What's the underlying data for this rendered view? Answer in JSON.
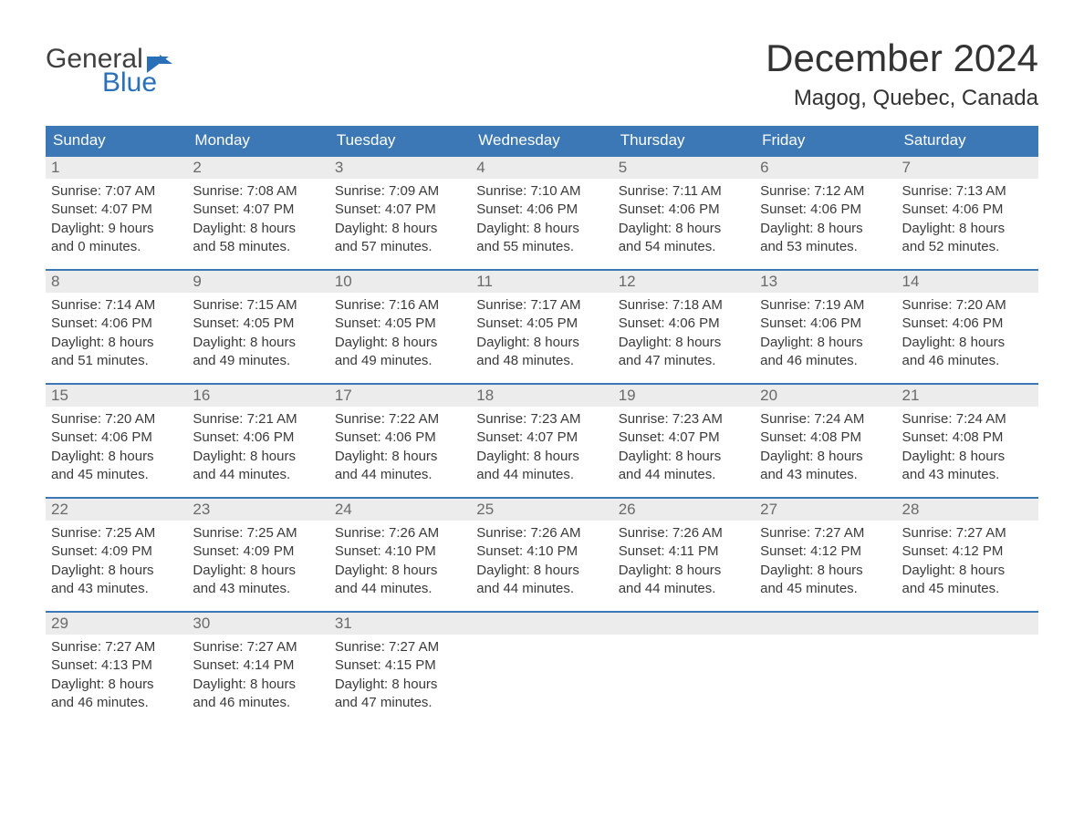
{
  "logo": {
    "word1": "General",
    "word2": "Blue"
  },
  "title": "December 2024",
  "subtitle": "Magog, Quebec, Canada",
  "colors": {
    "header_bg": "#3b78b5",
    "header_text": "#ffffff",
    "week_border": "#3b78b5",
    "daynum_bg": "#ececec",
    "daynum_text": "#6a6a6a",
    "body_text": "#3a3a3a",
    "page_bg": "#ffffff",
    "logo_gray": "#3f3f3f",
    "logo_blue": "#2a70b8"
  },
  "fonts": {
    "title_size": 42,
    "subtitle_size": 24,
    "dow_size": 17,
    "daynum_size": 17,
    "body_size": 15
  },
  "days_of_week": [
    "Sunday",
    "Monday",
    "Tuesday",
    "Wednesday",
    "Thursday",
    "Friday",
    "Saturday"
  ],
  "weeks": [
    [
      {
        "n": "1",
        "sr": "Sunrise: 7:07 AM",
        "ss": "Sunset: 4:07 PM",
        "d1": "Daylight: 9 hours",
        "d2": "and 0 minutes."
      },
      {
        "n": "2",
        "sr": "Sunrise: 7:08 AM",
        "ss": "Sunset: 4:07 PM",
        "d1": "Daylight: 8 hours",
        "d2": "and 58 minutes."
      },
      {
        "n": "3",
        "sr": "Sunrise: 7:09 AM",
        "ss": "Sunset: 4:07 PM",
        "d1": "Daylight: 8 hours",
        "d2": "and 57 minutes."
      },
      {
        "n": "4",
        "sr": "Sunrise: 7:10 AM",
        "ss": "Sunset: 4:06 PM",
        "d1": "Daylight: 8 hours",
        "d2": "and 55 minutes."
      },
      {
        "n": "5",
        "sr": "Sunrise: 7:11 AM",
        "ss": "Sunset: 4:06 PM",
        "d1": "Daylight: 8 hours",
        "d2": "and 54 minutes."
      },
      {
        "n": "6",
        "sr": "Sunrise: 7:12 AM",
        "ss": "Sunset: 4:06 PM",
        "d1": "Daylight: 8 hours",
        "d2": "and 53 minutes."
      },
      {
        "n": "7",
        "sr": "Sunrise: 7:13 AM",
        "ss": "Sunset: 4:06 PM",
        "d1": "Daylight: 8 hours",
        "d2": "and 52 minutes."
      }
    ],
    [
      {
        "n": "8",
        "sr": "Sunrise: 7:14 AM",
        "ss": "Sunset: 4:06 PM",
        "d1": "Daylight: 8 hours",
        "d2": "and 51 minutes."
      },
      {
        "n": "9",
        "sr": "Sunrise: 7:15 AM",
        "ss": "Sunset: 4:05 PM",
        "d1": "Daylight: 8 hours",
        "d2": "and 49 minutes."
      },
      {
        "n": "10",
        "sr": "Sunrise: 7:16 AM",
        "ss": "Sunset: 4:05 PM",
        "d1": "Daylight: 8 hours",
        "d2": "and 49 minutes."
      },
      {
        "n": "11",
        "sr": "Sunrise: 7:17 AM",
        "ss": "Sunset: 4:05 PM",
        "d1": "Daylight: 8 hours",
        "d2": "and 48 minutes."
      },
      {
        "n": "12",
        "sr": "Sunrise: 7:18 AM",
        "ss": "Sunset: 4:06 PM",
        "d1": "Daylight: 8 hours",
        "d2": "and 47 minutes."
      },
      {
        "n": "13",
        "sr": "Sunrise: 7:19 AM",
        "ss": "Sunset: 4:06 PM",
        "d1": "Daylight: 8 hours",
        "d2": "and 46 minutes."
      },
      {
        "n": "14",
        "sr": "Sunrise: 7:20 AM",
        "ss": "Sunset: 4:06 PM",
        "d1": "Daylight: 8 hours",
        "d2": "and 46 minutes."
      }
    ],
    [
      {
        "n": "15",
        "sr": "Sunrise: 7:20 AM",
        "ss": "Sunset: 4:06 PM",
        "d1": "Daylight: 8 hours",
        "d2": "and 45 minutes."
      },
      {
        "n": "16",
        "sr": "Sunrise: 7:21 AM",
        "ss": "Sunset: 4:06 PM",
        "d1": "Daylight: 8 hours",
        "d2": "and 44 minutes."
      },
      {
        "n": "17",
        "sr": "Sunrise: 7:22 AM",
        "ss": "Sunset: 4:06 PM",
        "d1": "Daylight: 8 hours",
        "d2": "and 44 minutes."
      },
      {
        "n": "18",
        "sr": "Sunrise: 7:23 AM",
        "ss": "Sunset: 4:07 PM",
        "d1": "Daylight: 8 hours",
        "d2": "and 44 minutes."
      },
      {
        "n": "19",
        "sr": "Sunrise: 7:23 AM",
        "ss": "Sunset: 4:07 PM",
        "d1": "Daylight: 8 hours",
        "d2": "and 44 minutes."
      },
      {
        "n": "20",
        "sr": "Sunrise: 7:24 AM",
        "ss": "Sunset: 4:08 PM",
        "d1": "Daylight: 8 hours",
        "d2": "and 43 minutes."
      },
      {
        "n": "21",
        "sr": "Sunrise: 7:24 AM",
        "ss": "Sunset: 4:08 PM",
        "d1": "Daylight: 8 hours",
        "d2": "and 43 minutes."
      }
    ],
    [
      {
        "n": "22",
        "sr": "Sunrise: 7:25 AM",
        "ss": "Sunset: 4:09 PM",
        "d1": "Daylight: 8 hours",
        "d2": "and 43 minutes."
      },
      {
        "n": "23",
        "sr": "Sunrise: 7:25 AM",
        "ss": "Sunset: 4:09 PM",
        "d1": "Daylight: 8 hours",
        "d2": "and 43 minutes."
      },
      {
        "n": "24",
        "sr": "Sunrise: 7:26 AM",
        "ss": "Sunset: 4:10 PM",
        "d1": "Daylight: 8 hours",
        "d2": "and 44 minutes."
      },
      {
        "n": "25",
        "sr": "Sunrise: 7:26 AM",
        "ss": "Sunset: 4:10 PM",
        "d1": "Daylight: 8 hours",
        "d2": "and 44 minutes."
      },
      {
        "n": "26",
        "sr": "Sunrise: 7:26 AM",
        "ss": "Sunset: 4:11 PM",
        "d1": "Daylight: 8 hours",
        "d2": "and 44 minutes."
      },
      {
        "n": "27",
        "sr": "Sunrise: 7:27 AM",
        "ss": "Sunset: 4:12 PM",
        "d1": "Daylight: 8 hours",
        "d2": "and 45 minutes."
      },
      {
        "n": "28",
        "sr": "Sunrise: 7:27 AM",
        "ss": "Sunset: 4:12 PM",
        "d1": "Daylight: 8 hours",
        "d2": "and 45 minutes."
      }
    ],
    [
      {
        "n": "29",
        "sr": "Sunrise: 7:27 AM",
        "ss": "Sunset: 4:13 PM",
        "d1": "Daylight: 8 hours",
        "d2": "and 46 minutes."
      },
      {
        "n": "30",
        "sr": "Sunrise: 7:27 AM",
        "ss": "Sunset: 4:14 PM",
        "d1": "Daylight: 8 hours",
        "d2": "and 46 minutes."
      },
      {
        "n": "31",
        "sr": "Sunrise: 7:27 AM",
        "ss": "Sunset: 4:15 PM",
        "d1": "Daylight: 8 hours",
        "d2": "and 47 minutes."
      },
      {
        "empty": true
      },
      {
        "empty": true
      },
      {
        "empty": true
      },
      {
        "empty": true
      }
    ]
  ]
}
